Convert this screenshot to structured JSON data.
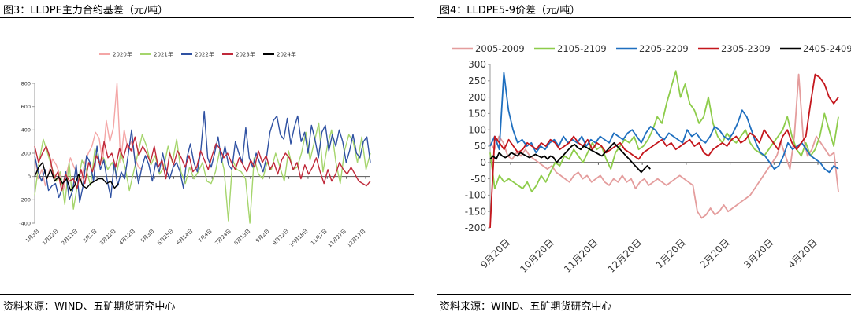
{
  "charts": [
    {
      "panel_title": "图3：LLDPE主力合约基差（元/吨）",
      "source": "资料来源：WIND、五矿期货研究中心"
    },
    {
      "panel_title": "图4：LLDPE5-9价差（元/吨）",
      "source": "资料来源：WIND、五矿期货研究中心"
    }
  ],
  "chart_data": [
    {
      "type": "line",
      "title": "",
      "xlabel": "",
      "ylabel": "",
      "ylim": [
        -400,
        800
      ],
      "yticks": [
        -400,
        -200,
        0,
        200,
        400,
        600,
        800
      ],
      "xticks": [
        "1月3日",
        "1月22日",
        "2月11日",
        "3月2日",
        "3月22日",
        "4月12日",
        "5月3日",
        "5月25日",
        "6月14日",
        "7月4日",
        "7月24日",
        "8月13日",
        "9月2日",
        "9月22日",
        "10月18日",
        "11月7日",
        "11月27日",
        "12月17日"
      ],
      "grid": false,
      "legend": "top",
      "series": [
        {
          "name": "2020年",
          "color": "#f4a6a6",
          "values": [
            180,
            -20,
            60,
            -80,
            40,
            150,
            100,
            20,
            -120,
            40,
            160,
            80,
            20,
            -40,
            120,
            200,
            260,
            380,
            330,
            120,
            480,
            300,
            420,
            800,
            120,
            400,
            240,
            300,
            160,
            80,
            60
          ]
        },
        {
          "name": "2021年",
          "color": "#a5d56c",
          "values": [
            -160,
            120,
            320,
            200,
            80,
            -40,
            40,
            -240,
            120,
            -280,
            -60,
            140,
            60,
            -80,
            240,
            120,
            160,
            60,
            120,
            20,
            200,
            80,
            -120,
            40,
            200,
            360,
            260,
            100,
            180,
            20,
            80,
            260,
            120,
            320,
            40,
            -60,
            80,
            -20,
            40,
            120,
            -40,
            -60,
            40,
            220,
            60,
            -380,
            140,
            60,
            40,
            -20,
            -400,
            160,
            20,
            -20,
            120,
            60,
            200,
            80,
            -40,
            220,
            60,
            80,
            200,
            380,
            140,
            300,
            460,
            40,
            260,
            400,
            120,
            -60,
            220,
            360,
            300,
            120,
            340,
            60,
            200
          ]
        },
        {
          "name": "2022年",
          "color": "#2f51a2",
          "values": [
            180,
            40,
            -40,
            60,
            -120,
            -80,
            -60,
            -180,
            -100,
            40,
            -200,
            -120,
            100,
            -220,
            -80,
            180,
            120,
            -40,
            260,
            60,
            140,
            -40,
            -180,
            120,
            -80,
            40,
            -20,
            180,
            400,
            120,
            -60,
            80,
            180,
            100,
            -40,
            120,
            40,
            200,
            60,
            -20,
            80,
            120,
            40,
            -100,
            160,
            280,
            120,
            40,
            220,
            560,
            160,
            80,
            200,
            340,
            120,
            260,
            100,
            60,
            300,
            200,
            120,
            420,
            160,
            80,
            200,
            120,
            40,
            160,
            380,
            480,
            520,
            360,
            320,
            500,
            280,
            420,
            520,
            300,
            380,
            200,
            440,
            320,
            160,
            380,
            440,
            220,
            360,
            260,
            400,
            300,
            120,
            220,
            360,
            200,
            160,
            300,
            340,
            120
          ]
        },
        {
          "name": "2023年",
          "color": "#c0293a",
          "values": [
            260,
            120,
            200,
            260,
            160,
            -20,
            40,
            -120,
            20,
            -40,
            -20,
            -100,
            60,
            -60,
            120,
            40,
            180,
            100,
            300,
            160,
            200,
            80,
            240,
            160,
            280,
            220,
            340,
            180,
            260,
            200,
            120,
            260,
            80,
            140,
            -20,
            200,
            100,
            220,
            160,
            80,
            180,
            40,
            80,
            220,
            140,
            60,
            180,
            280,
            240,
            160,
            200,
            120,
            60,
            160,
            100,
            40,
            140,
            80,
            220,
            120,
            180,
            60,
            120,
            20,
            140,
            200,
            160,
            60,
            120,
            -20,
            100,
            20,
            80,
            160,
            40,
            -60,
            60,
            -40,
            20,
            120,
            60,
            20,
            80,
            20,
            -40,
            -60,
            -80,
            -40
          ]
        },
        {
          "name": "2024年",
          "color": "#000000",
          "values": [
            0,
            80,
            120,
            -20,
            60,
            -40,
            0,
            -60,
            -20,
            -120,
            -80,
            20,
            -80,
            -100,
            -60,
            -40,
            -20,
            -20,
            -60,
            -40,
            -100,
            -60
          ]
        }
      ]
    },
    {
      "type": "line",
      "title": "",
      "xlabel": "",
      "ylabel": "",
      "ylim": [
        -200,
        300
      ],
      "yticks": [
        -200,
        -150,
        -100,
        -50,
        0,
        50,
        100,
        150,
        200,
        250,
        300
      ],
      "xticks": [
        "9月20日",
        "10月20日",
        "11月20日",
        "12月20日",
        "1月20日",
        "2月20日",
        "3月20日",
        "4月20日"
      ],
      "grid": false,
      "legend": "top",
      "series": [
        {
          "name": "2005-2009",
          "color": "#e49d9d",
          "values": [
            60,
            40,
            80,
            60,
            20,
            10,
            30,
            20,
            40,
            20,
            10,
            0,
            -10,
            -20,
            -10,
            -30,
            -40,
            -50,
            -60,
            -40,
            -30,
            -50,
            -40,
            -60,
            -50,
            -40,
            -60,
            -70,
            -50,
            -60,
            -40,
            -60,
            -50,
            -80,
            -60,
            -50,
            -70,
            -60,
            -50,
            -60,
            -70,
            -60,
            -50,
            -40,
            -50,
            -60,
            -70,
            -150,
            -170,
            -160,
            -140,
            -160,
            -150,
            -130,
            -150,
            -140,
            -130,
            -120,
            -110,
            -100,
            -80,
            -60,
            -40,
            -20,
            0,
            20,
            60,
            20,
            -20,
            80,
            270,
            80,
            20,
            40,
            80,
            60,
            40,
            20,
            30,
            -90
          ]
        },
        {
          "name": "2105-2109",
          "color": "#8dcc4a",
          "values": [
            30,
            -80,
            -40,
            -60,
            -50,
            -60,
            -70,
            -80,
            -60,
            -90,
            -70,
            -40,
            -60,
            -30,
            0,
            -10,
            20,
            10,
            40,
            20,
            0,
            30,
            60,
            40,
            50,
            10,
            -20,
            30,
            50,
            70,
            60,
            80,
            40,
            50,
            70,
            100,
            140,
            120,
            180,
            230,
            280,
            200,
            240,
            180,
            160,
            120,
            140,
            200,
            120,
            80,
            60,
            90,
            70,
            60,
            80,
            100,
            60,
            40,
            30,
            20,
            40,
            60,
            80,
            100,
            140,
            80,
            40,
            20,
            60,
            20,
            40,
            80,
            150,
            100,
            50,
            140
          ]
        },
        {
          "name": "2205-2209",
          "color": "#1f6fbf",
          "values": [
            50,
            80,
            40,
            275,
            160,
            100,
            60,
            70,
            50,
            60,
            30,
            50,
            40,
            60,
            70,
            50,
            80,
            60,
            70,
            60,
            80,
            50,
            70,
            60,
            80,
            70,
            60,
            90,
            80,
            70,
            90,
            100,
            80,
            60,
            90,
            110,
            100,
            80,
            70,
            90,
            80,
            70,
            60,
            100,
            80,
            90,
            70,
            60,
            80,
            110,
            100,
            80,
            70,
            90,
            120,
            160,
            140,
            100,
            60,
            30,
            20,
            0,
            -20,
            -10,
            20,
            60,
            40,
            50,
            60,
            40,
            20,
            10,
            0,
            -20,
            -30,
            -10,
            -20
          ]
        },
        {
          "name": "2305-2309",
          "color": "#c4161c",
          "values": [
            -200,
            80,
            60,
            40,
            70,
            50,
            30,
            40,
            60,
            50,
            40,
            60,
            50,
            70,
            60,
            40,
            50,
            60,
            80,
            60,
            50,
            70,
            40,
            60,
            50,
            30,
            40,
            50,
            60,
            40,
            30,
            20,
            10,
            30,
            40,
            50,
            60,
            70,
            50,
            60,
            40,
            50,
            60,
            70,
            50,
            60,
            30,
            20,
            40,
            50,
            60,
            50,
            70,
            80,
            60,
            70,
            90,
            80,
            60,
            100,
            80,
            60,
            40,
            80,
            100,
            60,
            40,
            60,
            80,
            180,
            270,
            260,
            240,
            200,
            180,
            200
          ]
        },
        {
          "name": "2405-2409",
          "color": "#000000",
          "values": [
            10,
            20,
            10,
            30,
            20,
            15,
            20,
            30,
            25,
            20,
            30,
            25,
            20,
            15,
            20,
            25,
            20,
            15,
            20,
            10,
            20,
            15,
            0,
            10,
            20,
            30,
            40,
            50,
            55,
            45,
            40,
            50,
            45,
            40,
            35,
            30,
            25,
            20,
            30,
            40,
            50,
            60,
            50,
            40,
            30,
            20,
            10,
            0,
            -10,
            -20,
            -30,
            -20,
            -10,
            -20
          ]
        }
      ]
    }
  ]
}
